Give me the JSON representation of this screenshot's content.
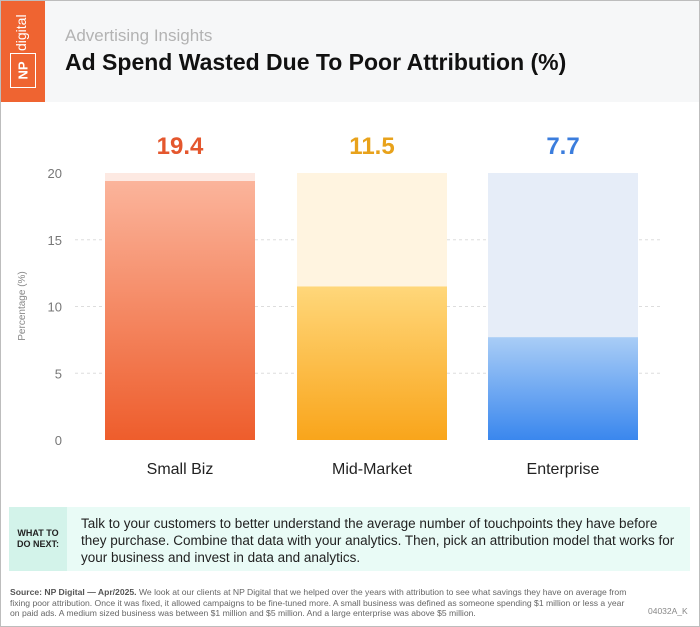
{
  "header": {
    "logo_text": "NP digital",
    "subtitle": "Advertising Insights",
    "title": "Ad Spend Wasted Due To Poor Attribution (%)"
  },
  "chart_data": {
    "type": "bar",
    "title": "Ad Spend Wasted Due To Poor Attribution (%)",
    "categories": [
      "Small Biz",
      "Mid-Market",
      "Enterprise"
    ],
    "values": [
      19.4,
      11.5,
      7.7
    ],
    "value_labels": [
      "19.4",
      "11.5",
      "7.7"
    ],
    "ylabel": "Percentage (%)",
    "xlabel": "",
    "ylim": [
      0,
      20
    ],
    "yticks": [
      "0",
      "5",
      "10",
      "15",
      "20"
    ],
    "grid": true,
    "colors": [
      "#ef6431",
      "#f9a825",
      "#3d8bef"
    ],
    "label_colors": [
      "#e4572e",
      "#e8a21b",
      "#3b7ddd"
    ]
  },
  "todo": {
    "label_line1": "WHAT TO",
    "label_line2": "DO NEXT:",
    "text": "Talk to your customers to better understand the average number of touchpoints they have before they purchase. Combine that data with your analytics. Then, pick an attribution model that works for your business and invest in data and analytics."
  },
  "footer": {
    "source_bold": "Source: NP Digital — Apr/2025.",
    "source_text": " We look at our clients at NP Digital that we helped over the years with attribution to see what savings they have on average from fixing poor attribution. Once it was fixed, it allowed campaigns to be fine-tuned more. A small business was defined as someone spending $1 million or less a year on paid ads. A medium sized business was between $1 million and $5 million. And a large enterprise was above $5 million.",
    "code": "04032A_K"
  }
}
